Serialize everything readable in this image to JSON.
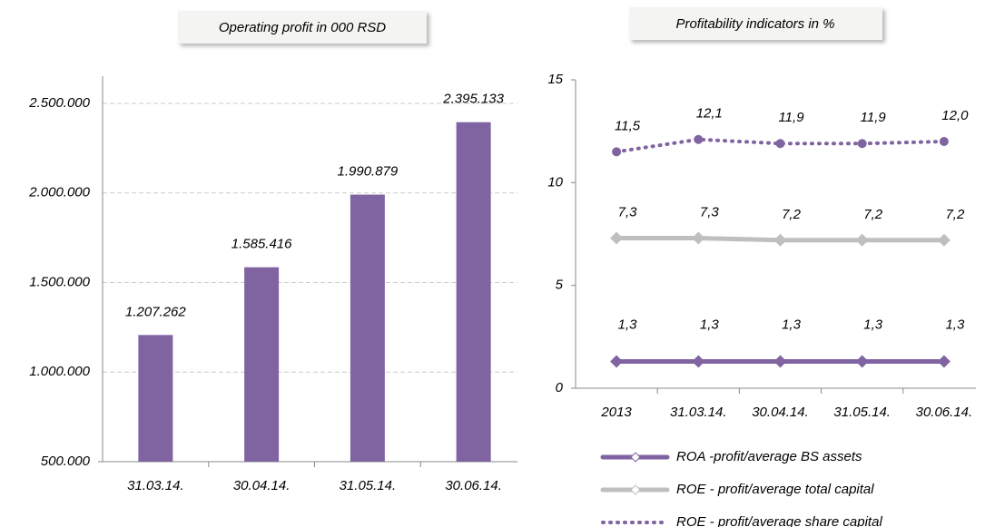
{
  "chart_data": [
    {
      "type": "bar",
      "title": "Operating profit in 000 RSD",
      "categories": [
        "31.03.14.",
        "30.04.14.",
        "31.05.14.",
        "30.06.14."
      ],
      "values": [
        1207262,
        1585416,
        1990879,
        2395133
      ],
      "value_labels": [
        "1.207.262",
        "1.585.416",
        "1.990.879",
        "2.395.133"
      ],
      "color": "#8064a2",
      "ylim": [
        500000,
        2500000
      ],
      "yticks": [
        {
          "value": 500000,
          "label": "500.000"
        },
        {
          "value": 1000000,
          "label": "1.000.000"
        },
        {
          "value": 1500000,
          "label": "1.500.000"
        },
        {
          "value": 2000000,
          "label": "2.000.000"
        },
        {
          "value": 2500000,
          "label": "2.500.000"
        }
      ],
      "grid": true
    },
    {
      "type": "line",
      "title": "Profitability indicators in %",
      "categories": [
        "2013",
        "31.03.14.",
        "30.04.14.",
        "31.05.14.",
        "30.06.14."
      ],
      "series": [
        {
          "name": "ROA -profit/average BS assets",
          "color": "#8064a2",
          "style": "solid",
          "marker": "diamond",
          "values": [
            1.3,
            1.3,
            1.3,
            1.3,
            1.3
          ],
          "value_labels": [
            "1,3",
            "1,3",
            "1,3",
            "1,3",
            "1,3"
          ]
        },
        {
          "name": "ROE - profit/average total capital",
          "color": "#bfbfbf",
          "style": "solid",
          "marker": "diamond",
          "values": [
            7.3,
            7.3,
            7.2,
            7.2,
            7.2
          ],
          "value_labels": [
            "7,3",
            "7,3",
            "7,2",
            "7,2",
            "7,2"
          ]
        },
        {
          "name": "ROE - profit/average share capital",
          "color": "#8064a2",
          "style": "dotted",
          "marker": "circle",
          "values": [
            11.5,
            12.1,
            11.9,
            11.9,
            12.0
          ],
          "value_labels": [
            "11,5",
            "12,1",
            "11,9",
            "11,9",
            "12,0"
          ]
        }
      ],
      "ylim": [
        0,
        15
      ],
      "yticks": [
        0,
        5,
        10,
        15
      ],
      "grid": false,
      "legend": "bottom"
    }
  ]
}
